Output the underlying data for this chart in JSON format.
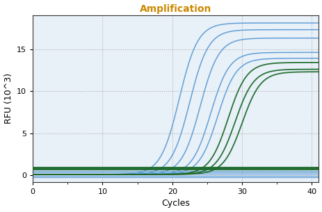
{
  "title": "Amplification",
  "xlabel": "Cycles",
  "ylabel": "RFU (10^3)",
  "xlim": [
    0,
    41
  ],
  "ylim": [
    -0.8,
    19
  ],
  "xticks": [
    0,
    10,
    20,
    30,
    40
  ],
  "yticks": [
    0,
    5,
    10,
    15
  ],
  "background_color": "#ffffff",
  "plot_bg_color": "#e8f0f8",
  "grid_color": "#aaaaaa",
  "blue_curves": [
    {
      "ct": 21.0,
      "plateau": 18.0,
      "k": 0.75
    },
    {
      "ct": 22.5,
      "plateau": 17.2,
      "k": 0.75
    },
    {
      "ct": 24.0,
      "plateau": 16.2,
      "k": 0.75
    },
    {
      "ct": 25.5,
      "plateau": 14.5,
      "k": 0.75
    },
    {
      "ct": 26.5,
      "plateau": 13.8,
      "k": 0.75
    }
  ],
  "green_curves": [
    {
      "ct": 28.0,
      "plateau": 13.3,
      "k": 0.75
    },
    {
      "ct": 29.0,
      "plateau": 12.5,
      "k": 0.75
    },
    {
      "ct": 30.0,
      "plateau": 12.2,
      "k": 0.75
    }
  ],
  "blue_flat": [
    0.55,
    0.35,
    0.15,
    -0.05,
    -0.25
  ],
  "green_flat": [
    0.9,
    0.75
  ],
  "blue_color": "#5b9bd5",
  "green_color": "#1f6b2e",
  "green_flat_color": "#1f6b2e",
  "title_color": "#cc8800",
  "axis_label_color": "#000000",
  "title_fontsize": 10,
  "axis_label_fontsize": 9
}
